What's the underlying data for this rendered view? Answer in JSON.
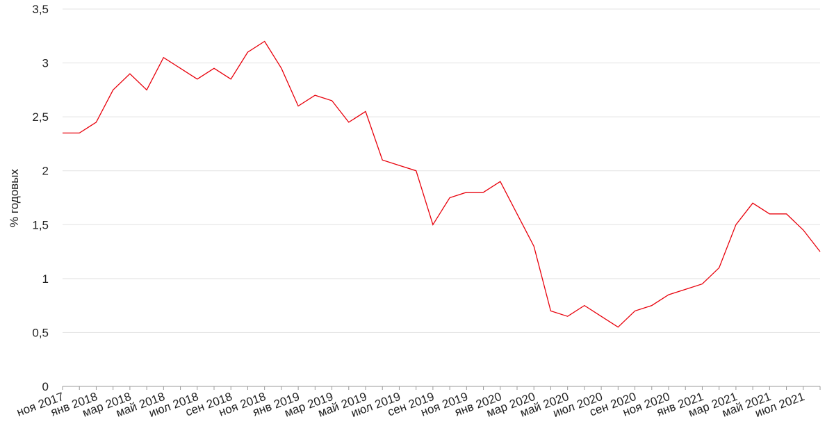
{
  "chart_data": {
    "type": "line",
    "y_label": "% годовых",
    "categories": [
      "ноя 2017",
      null,
      "янв 2018",
      null,
      "мар 2018",
      null,
      "май 2018",
      null,
      "июл 2018",
      null,
      "сен 2018",
      null,
      "ноя 2018",
      null,
      "янв 2019",
      null,
      "мар 2019",
      null,
      "май 2019",
      null,
      "июл 2019",
      null,
      "сен 2019",
      null,
      "ноя 2019",
      null,
      "янв 2020",
      null,
      "мар 2020",
      null,
      "май 2020",
      null,
      "июл 2020",
      null,
      "сен 2020",
      null,
      "ноя 2020",
      null,
      "янв 2021",
      null,
      "мар 2021",
      null,
      "май 2021",
      null,
      "июл 2021",
      null
    ],
    "values": [
      2.35,
      2.35,
      2.45,
      2.75,
      2.9,
      2.75,
      3.05,
      2.95,
      2.85,
      2.95,
      2.85,
      3.1,
      3.2,
      2.95,
      2.6,
      2.7,
      2.65,
      2.45,
      2.55,
      2.1,
      2.05,
      2.0,
      1.5,
      1.75,
      1.8,
      1.8,
      1.9,
      1.6,
      1.3,
      0.7,
      0.65,
      0.75,
      0.65,
      0.55,
      0.7,
      0.75,
      0.85,
      0.9,
      0.95,
      1.1,
      1.5,
      1.7,
      1.6,
      1.6,
      1.45,
      1.25
    ],
    "color": "#e8000b",
    "ylim": [
      0,
      3.5
    ],
    "yticks": [
      0,
      {
        "value": 0.5,
        "label": "0,5"
      },
      1,
      {
        "value": 1.5,
        "label": "1,5"
      },
      2,
      {
        "value": 2.5,
        "label": "2,5"
      },
      3,
      {
        "value": 3.5,
        "label": "3,5"
      }
    ],
    "grid": true
  }
}
